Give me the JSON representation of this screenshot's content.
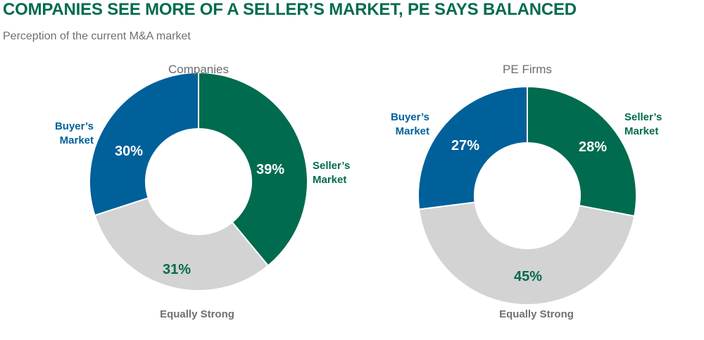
{
  "header": {
    "title": "COMPANIES SEE MORE OF A SELLER’S MARKET, PE SAYS BALANCED",
    "subtitle": "Perception of the current M&A market"
  },
  "colors": {
    "seller": "#006B4F",
    "buyer": "#00609A",
    "equal": "#D3D3D3",
    "equal_label": "#707070",
    "equal_pct": "#006B4F",
    "title": "#006B4F"
  },
  "chart_data": [
    {
      "type": "pie",
      "variant": "donut",
      "title": "Companies",
      "slices": [
        {
          "label": "Seller’s Market",
          "value": 39,
          "display": "39%"
        },
        {
          "label": "Equally Strong",
          "value": 31,
          "display": "31%"
        },
        {
          "label": "Buyer’s Market",
          "value": 30,
          "display": "30%"
        }
      ]
    },
    {
      "type": "pie",
      "variant": "donut",
      "title": "PE Firms",
      "slices": [
        {
          "label": "Seller’s Market",
          "value": 28,
          "display": "28%"
        },
        {
          "label": "Equally Strong",
          "value": 45,
          "display": "45%"
        },
        {
          "label": "Buyer’s Market",
          "value": 27,
          "display": "27%"
        }
      ]
    }
  ]
}
